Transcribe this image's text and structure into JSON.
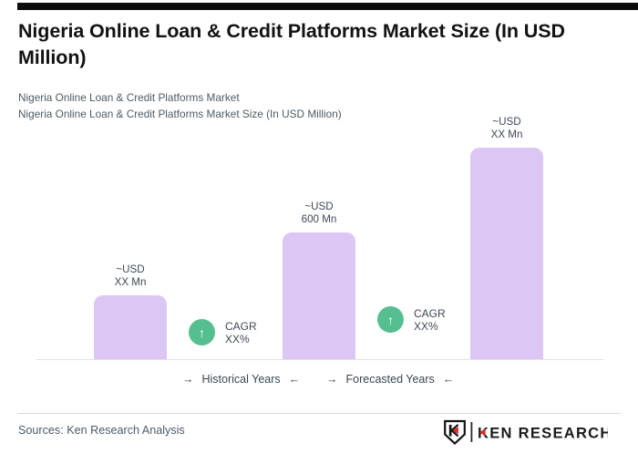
{
  "header": {
    "title": "Nigeria Online Loan & Credit Platforms Market Size (In USD Million)",
    "subtitle_line1": "Nigeria Online Loan & Credit Platforms Market",
    "subtitle_line2": "Nigeria Online Loan & Credit Platforms Market Size (In USD Million)"
  },
  "chart_data": {
    "type": "bar",
    "title": "Nigeria Online Loan & Credit Platforms Market Size (In USD Million)",
    "unit": "USD Mn",
    "bar_color": "#dcc6f3",
    "cagr_color": "#55bf90",
    "categories": [
      "Historical Years",
      "Historical Years",
      "Forecasted Years"
    ],
    "values": [
      300,
      600,
      1000
    ],
    "values_note": "Middle bar labeled ~USD 600 Mn; first and last bars masked (XX), 300 and 1000 estimated from bar heights",
    "bar_labels": [
      {
        "line1": "~USD",
        "line2": "XX Mn"
      },
      {
        "line1": "~USD",
        "line2": "600 Mn"
      },
      {
        "line1": "~USD",
        "line2": "XX Mn"
      }
    ],
    "cagr_badges": [
      {
        "line1": "CAGR",
        "line2": "XX%",
        "arrow": "↑"
      },
      {
        "line1": "CAGR",
        "line2": "XX%",
        "arrow": "↑"
      }
    ],
    "axis_groups": [
      {
        "arrow_in": "→",
        "label": "Historical Years",
        "arrow_out": "←"
      },
      {
        "arrow_in": "→",
        "label": "Forecasted Years",
        "arrow_out": "←"
      }
    ],
    "ylim": [
      0,
      1100
    ],
    "grid": false,
    "legend_position": "below-axis"
  },
  "footer": {
    "source": "Sources: Ken Research Analysis",
    "logo": {
      "text": "KEN RESEARCH"
    }
  }
}
